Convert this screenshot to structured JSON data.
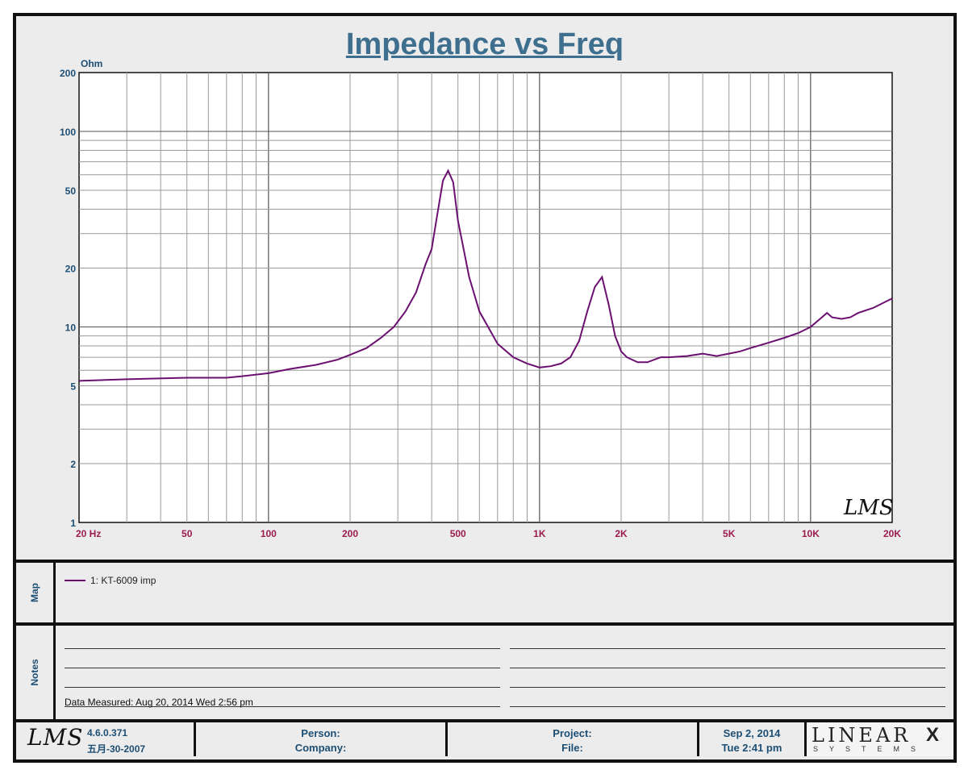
{
  "chart_data": {
    "type": "line",
    "title": "Impedance vs Freq",
    "ylabel": "Ohm",
    "xscale": "log",
    "yscale": "log",
    "xlim": [
      20,
      20000
    ],
    "ylim": [
      1,
      200
    ],
    "grid": true,
    "x_ticks": [
      {
        "value": 20,
        "label": "20  Hz"
      },
      {
        "value": 50,
        "label": "50"
      },
      {
        "value": 100,
        "label": "100"
      },
      {
        "value": 200,
        "label": "200"
      },
      {
        "value": 500,
        "label": "500"
      },
      {
        "value": 1000,
        "label": "1K"
      },
      {
        "value": 2000,
        "label": "2K"
      },
      {
        "value": 5000,
        "label": "5K"
      },
      {
        "value": 10000,
        "label": "10K"
      },
      {
        "value": 20000,
        "label": "20K"
      }
    ],
    "y_ticks": [
      {
        "value": 1,
        "label": "1"
      },
      {
        "value": 2,
        "label": "2"
      },
      {
        "value": 5,
        "label": "5"
      },
      {
        "value": 10,
        "label": "10"
      },
      {
        "value": 20,
        "label": "20"
      },
      {
        "value": 50,
        "label": "50"
      },
      {
        "value": 100,
        "label": "100"
      },
      {
        "value": 200,
        "label": "200"
      }
    ],
    "series": [
      {
        "name": "1: KT-6009 imp",
        "color": "#6b1070",
        "x": [
          20,
          30,
          50,
          70,
          80,
          100,
          120,
          150,
          180,
          200,
          230,
          260,
          290,
          320,
          350,
          380,
          400,
          420,
          440,
          460,
          480,
          500,
          550,
          600,
          700,
          800,
          900,
          1000,
          1100,
          1200,
          1300,
          1400,
          1500,
          1600,
          1700,
          1800,
          1900,
          2000,
          2100,
          2300,
          2500,
          2800,
          3000,
          3500,
          4000,
          4500,
          5000,
          5500,
          6000,
          7000,
          8000,
          9000,
          10000,
          11000,
          11500,
          12000,
          13000,
          14000,
          15000,
          17000,
          20000
        ],
        "y": [
          5.3,
          5.4,
          5.5,
          5.5,
          5.6,
          5.8,
          6.1,
          6.4,
          6.8,
          7.2,
          7.8,
          8.8,
          10,
          12,
          15,
          21,
          25,
          38,
          56,
          63,
          55,
          35,
          18,
          12,
          8.2,
          7,
          6.5,
          6.2,
          6.3,
          6.5,
          7,
          8.5,
          12,
          16,
          18,
          13,
          9,
          7.5,
          7,
          6.6,
          6.6,
          7,
          7,
          7.1,
          7.3,
          7.1,
          7.3,
          7.5,
          7.8,
          8.3,
          8.8,
          9.3,
          10,
          11.2,
          11.8,
          11.2,
          11,
          11.2,
          11.8,
          12.5,
          14
        ]
      }
    ]
  },
  "watermark": "LMS",
  "map": {
    "label": "Map",
    "legend_entry": "1: KT-6009 imp"
  },
  "notes": {
    "label": "Notes",
    "measured": "Data Measured: Aug 20, 2014  Wed  2:56 pm"
  },
  "footer": {
    "logo": "LMS",
    "version": "4.6.0.371",
    "build_date": "五月-30-2007",
    "person_label": "Person:",
    "company_label": "Company:",
    "project_label": "Project:",
    "file_label": "File:",
    "date": "Sep  2, 2014",
    "time": "Tue  2:41 pm",
    "brand": "LINEAR",
    "brand_x": "X",
    "brand_sub": "SYSTEMS"
  }
}
